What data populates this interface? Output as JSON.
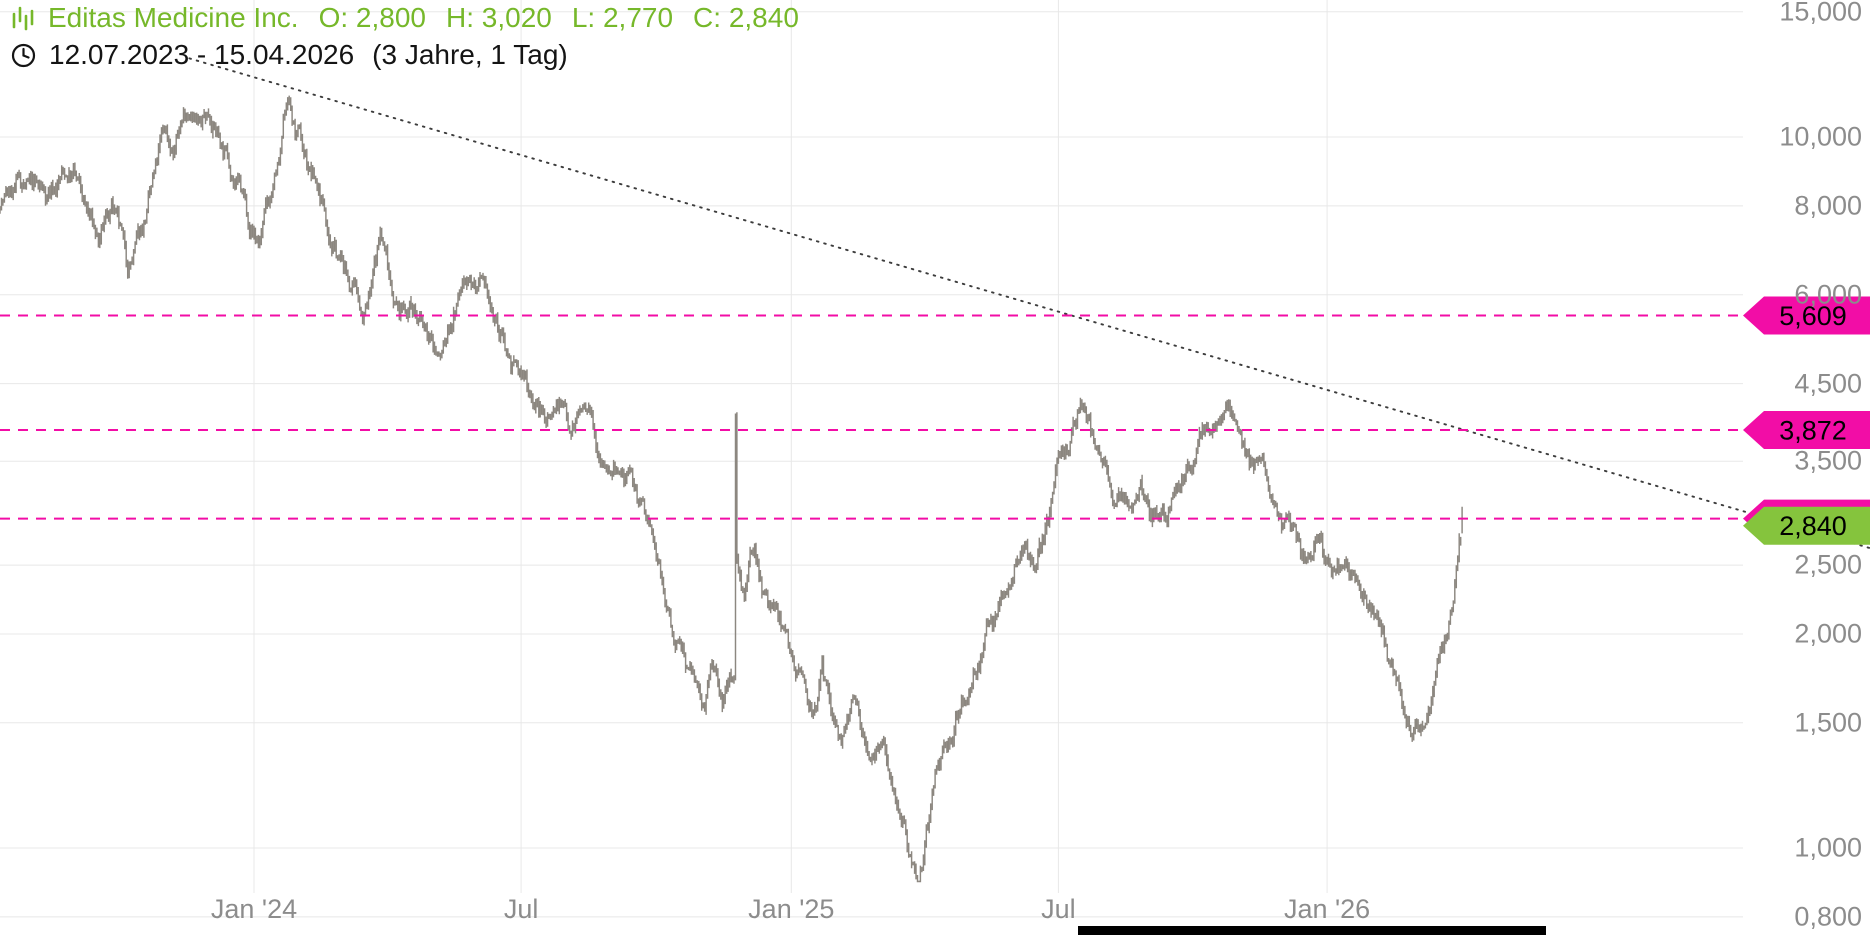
{
  "header": {
    "instrument": "Editas Medicine Inc.",
    "ohlc": {
      "o": "O: 2,800",
      "h": "H: 3,020",
      "l": "L: 2,770",
      "c": "C: 2,840"
    },
    "date_range": "12.07.2023 - 15.04.2026",
    "interval": "(3 Jahre, 1 Tag)"
  },
  "colors": {
    "title_green": "#76B82A",
    "tag_green": "#85C43D",
    "magenta": "#F20DA6",
    "bars": "#8C8780",
    "grid": "#E8E8E8",
    "axis_text": "#8C8C8C",
    "trendline": "#3C3C3C"
  },
  "chart_data": {
    "type": "line",
    "style": "daily-ohlc-bars",
    "title": "Editas Medicine Inc.",
    "xlabel": "",
    "ylabel": "",
    "y_axis": {
      "scale": "logarithmic",
      "ylim": [
        0.8,
        15.0
      ],
      "ticks": [
        {
          "value": 15.0,
          "label": "15,000"
        },
        {
          "value": 10.0,
          "label": "10,000"
        },
        {
          "value": 8.0,
          "label": "8,000"
        },
        {
          "value": 6.0,
          "label": "6,000"
        },
        {
          "value": 4.5,
          "label": "4,500"
        },
        {
          "value": 3.5,
          "label": "3,500"
        },
        {
          "value": 2.5,
          "label": "2,500"
        },
        {
          "value": 2.0,
          "label": "2,000"
        },
        {
          "value": 1.5,
          "label": "1,500"
        },
        {
          "value": 1.0,
          "label": "1,000"
        },
        {
          "value": 0.8,
          "label": "0,800"
        }
      ]
    },
    "x_axis": {
      "start_date": "12.07.2023",
      "end_date": "15.04.2026",
      "ticks": [
        {
          "label": "Jan '24",
          "day": 173
        },
        {
          "label": "Jul",
          "day": 355
        },
        {
          "label": "Jan '25",
          "day": 539
        },
        {
          "label": "Jul",
          "day": 721
        },
        {
          "label": "Jan '26",
          "day": 904
        }
      ]
    },
    "series": [
      {
        "name": "Editas Medicine Inc.",
        "last_bar": {
          "open": 2.8,
          "high": 3.02,
          "low": 2.77,
          "close": 2.84
        },
        "anchors": [
          [
            0,
            8.2
          ],
          [
            15,
            8.5
          ],
          [
            30,
            8.2
          ],
          [
            42,
            8.8
          ],
          [
            50,
            8.9
          ],
          [
            58,
            7.8
          ],
          [
            68,
            7.0
          ],
          [
            76,
            7.9
          ],
          [
            87,
            6.4
          ],
          [
            97,
            7.3
          ],
          [
            106,
            8.7
          ],
          [
            112,
            10.0
          ],
          [
            118,
            9.5
          ],
          [
            126,
            10.9
          ],
          [
            130,
            11.3
          ],
          [
            136,
            10.3
          ],
          [
            143,
            10.8
          ],
          [
            151,
            9.9
          ],
          [
            160,
            8.9
          ],
          [
            169,
            7.7
          ],
          [
            176,
            7.2
          ],
          [
            184,
            8.1
          ],
          [
            191,
            9.1
          ],
          [
            196,
            11.3
          ],
          [
            200,
            10.2
          ],
          [
            208,
            9.2
          ],
          [
            218,
            8.3
          ],
          [
            228,
            7.1
          ],
          [
            238,
            6.2
          ],
          [
            247,
            5.6
          ],
          [
            253,
            6.0
          ],
          [
            259,
            7.2
          ],
          [
            266,
            6.3
          ],
          [
            272,
            5.7
          ],
          [
            281,
            5.9
          ],
          [
            290,
            5.2
          ],
          [
            300,
            4.8
          ],
          [
            310,
            5.7
          ],
          [
            319,
            6.5
          ],
          [
            327,
            6.1
          ],
          [
            335,
            5.4
          ],
          [
            344,
            5.0
          ],
          [
            353,
            4.6
          ],
          [
            362,
            4.4
          ],
          [
            371,
            4.0
          ],
          [
            380,
            4.3
          ],
          [
            388,
            4.0
          ],
          [
            396,
            4.2
          ],
          [
            405,
            3.8
          ],
          [
            416,
            3.6
          ],
          [
            426,
            3.3
          ],
          [
            436,
            3.0
          ],
          [
            444,
            2.7
          ],
          [
            451,
            2.3
          ],
          [
            458,
            2.0
          ],
          [
            465,
            1.85
          ],
          [
            471,
            1.75
          ],
          [
            478,
            1.62
          ],
          [
            485,
            1.78
          ],
          [
            492,
            1.62
          ],
          [
            497,
            1.72
          ],
          [
            500,
            1.8
          ],
          [
            501,
            4.15
          ],
          [
            502,
            2.6
          ],
          [
            507,
            2.35
          ],
          [
            514,
            2.6
          ],
          [
            521,
            2.3
          ],
          [
            528,
            2.1
          ],
          [
            536,
            1.95
          ],
          [
            545,
            1.75
          ],
          [
            553,
            1.6
          ],
          [
            560,
            1.75
          ],
          [
            567,
            1.5
          ],
          [
            576,
            1.44
          ],
          [
            584,
            1.56
          ],
          [
            593,
            1.42
          ],
          [
            601,
            1.5
          ],
          [
            608,
            1.3
          ],
          [
            615,
            1.14
          ],
          [
            621,
            1.0
          ],
          [
            625,
            0.93
          ],
          [
            631,
            1.06
          ],
          [
            638,
            1.22
          ],
          [
            646,
            1.36
          ],
          [
            654,
            1.56
          ],
          [
            662,
            1.76
          ],
          [
            671,
            1.96
          ],
          [
            680,
            2.16
          ],
          [
            688,
            2.4
          ],
          [
            696,
            2.72
          ],
          [
            705,
            2.5
          ],
          [
            714,
            2.9
          ],
          [
            722,
            3.4
          ],
          [
            730,
            3.85
          ],
          [
            737,
            4.05
          ],
          [
            744,
            3.7
          ],
          [
            753,
            3.4
          ],
          [
            762,
            3.1
          ],
          [
            770,
            2.95
          ],
          [
            778,
            3.12
          ],
          [
            785,
            2.9
          ],
          [
            794,
            3.05
          ],
          [
            803,
            3.3
          ],
          [
            811,
            3.5
          ],
          [
            819,
            3.8
          ],
          [
            828,
            4.2
          ],
          [
            837,
            4.45
          ],
          [
            845,
            4.0
          ],
          [
            853,
            3.6
          ],
          [
            860,
            3.3
          ],
          [
            866,
            3.0
          ],
          [
            874,
            2.8
          ],
          [
            882,
            2.65
          ],
          [
            891,
            2.5
          ],
          [
            899,
            2.62
          ],
          [
            907,
            2.45
          ],
          [
            916,
            2.52
          ],
          [
            924,
            2.3
          ],
          [
            932,
            2.2
          ],
          [
            939,
            2.05
          ],
          [
            947,
            1.8
          ],
          [
            954,
            1.6
          ],
          [
            962,
            1.48
          ],
          [
            969,
            1.56
          ],
          [
            976,
            1.72
          ],
          [
            982,
            1.95
          ],
          [
            988,
            2.2
          ],
          [
            992,
            2.5
          ],
          [
            996,
            2.84
          ]
        ]
      }
    ],
    "horizontal_levels": [
      {
        "value": 5.609,
        "label": "5,609"
      },
      {
        "value": 3.872,
        "label": "3,872"
      },
      {
        "value": 2.906,
        "label": "2,906"
      }
    ],
    "current_price": {
      "value": 2.84,
      "label": "2,840"
    },
    "trendline": {
      "x1_day": 129,
      "price1": 12.9,
      "x2_day": 1274,
      "price2": 2.64
    },
    "legend": "none",
    "grid": "on"
  }
}
